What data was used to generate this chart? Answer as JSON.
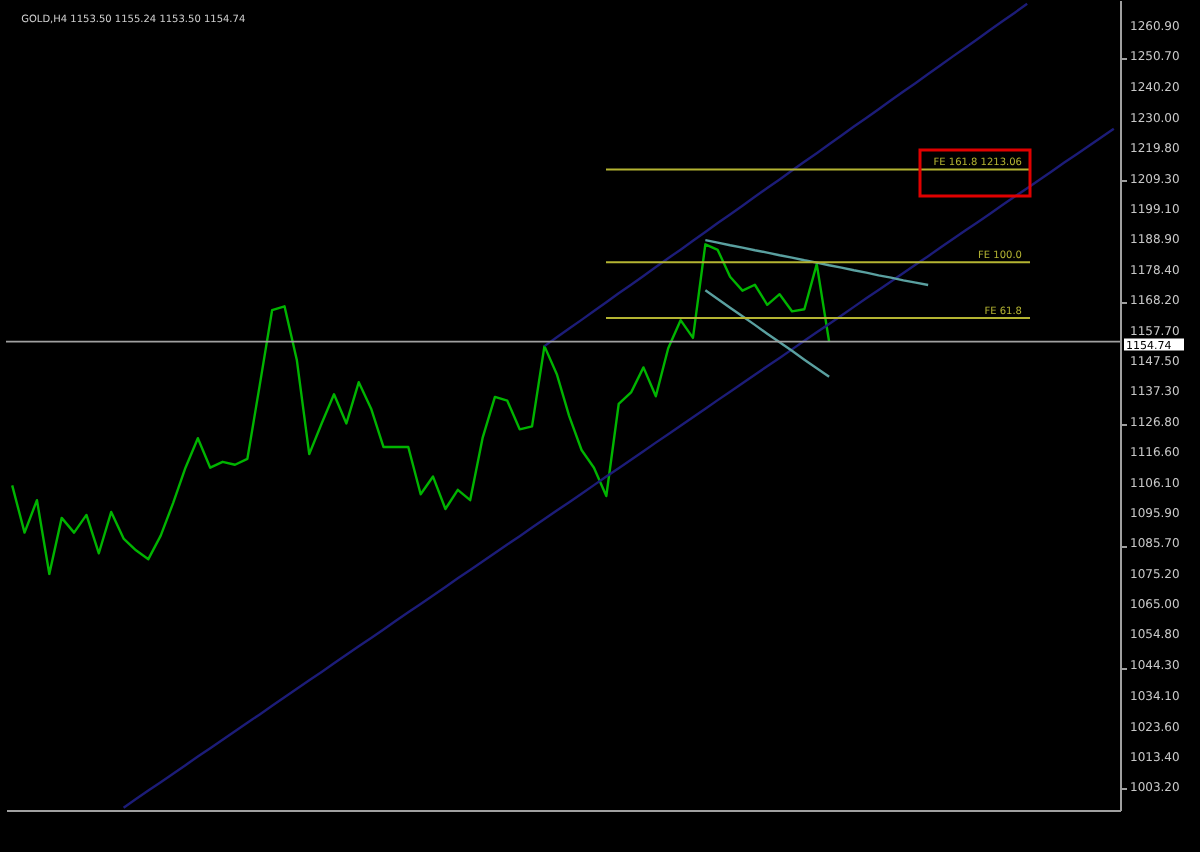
{
  "chart_data": {
    "type": "line",
    "title": "GOLD,H4 1153.50 1155.24 1153.50 1154.74",
    "ylim": [
      996,
      1270.5
    ],
    "categories": [
      null,
      null,
      null,
      null,
      null,
      null,
      null,
      null,
      null,
      null,
      null,
      null,
      null,
      null,
      null,
      null,
      null,
      null,
      null,
      null,
      null,
      null,
      null,
      null,
      null,
      null,
      null,
      null,
      null,
      null,
      null,
      null,
      null,
      null,
      null,
      null,
      null,
      null,
      null,
      null,
      null,
      null,
      null,
      null,
      null,
      null,
      null,
      null,
      null,
      null,
      null,
      null,
      null,
      null,
      null,
      null,
      null,
      null,
      null,
      null,
      null,
      null,
      null,
      null,
      null,
      null,
      null,
      null,
      null,
      null,
      null,
      null,
      null,
      null,
      null,
      null,
      null,
      null,
      null,
      null,
      null,
      null,
      null,
      null,
      null,
      null,
      null,
      null,
      null,
      null
    ],
    "yticks": [
      {
        "value": 1260.9,
        "label": "1260.90"
      },
      {
        "value": 1250.7,
        "label": "1250.70"
      },
      {
        "value": 1240.2,
        "label": "1240.20"
      },
      {
        "value": 1230.0,
        "label": "1230.00"
      },
      {
        "value": 1219.8,
        "label": "1219.80"
      },
      {
        "value": 1209.3,
        "label": "1209.30"
      },
      {
        "value": 1199.1,
        "label": "1199.10"
      },
      {
        "value": 1188.9,
        "label": "1188.90"
      },
      {
        "value": 1178.4,
        "label": "1178.40"
      },
      {
        "value": 1168.2,
        "label": "1168.20"
      },
      {
        "value": 1157.7,
        "label": "1157.70"
      },
      {
        "value": 1147.5,
        "label": "1147.50"
      },
      {
        "value": 1137.3,
        "label": "1137.30"
      },
      {
        "value": 1126.8,
        "label": "1126.80"
      },
      {
        "value": 1116.6,
        "label": "1116.60"
      },
      {
        "value": 1106.1,
        "label": "1106.10"
      },
      {
        "value": 1095.9,
        "label": "1095.90"
      },
      {
        "value": 1085.7,
        "label": "1085.70"
      },
      {
        "value": 1075.2,
        "label": "1075.20"
      },
      {
        "value": 1065.0,
        "label": "1065.00"
      },
      {
        "value": 1054.8,
        "label": "1054.80"
      },
      {
        "value": 1044.3,
        "label": "1044.30"
      },
      {
        "value": 1034.1,
        "label": "1034.10"
      },
      {
        "value": 1023.6,
        "label": "1023.60"
      },
      {
        "value": 1013.4,
        "label": "1013.40"
      },
      {
        "value": 1003.2,
        "label": "1003.20"
      }
    ],
    "tick_labels": "y",
    "grid": false,
    "marker": "none",
    "line_style": "solid",
    "series": [
      {
        "color": "#00b400",
        "values": [
          1106,
          1090,
          1101,
          1076,
          1095,
          1090,
          1096,
          1083,
          1097,
          1088,
          1084,
          1081,
          1089,
          1100,
          1112,
          1122,
          1112,
          1114,
          1113,
          1115,
          1140,
          1165.4,
          1166.7,
          1148.4,
          1116.6,
          1127,
          1136.9,
          1127,
          1141,
          1132,
          1119,
          1119,
          1119,
          1103,
          1109,
          1098,
          1104.5,
          1101,
          1122,
          1136,
          1134.7,
          1125,
          1126,
          1153.2,
          1143.7,
          1129.5,
          1118,
          1112,
          1102.4,
          1133.6,
          1137.5,
          1146,
          1136.2,
          1152.5,
          1162,
          1156,
          1187.7,
          1185.8,
          1176.7,
          1172,
          1174,
          1167.2,
          1170.8,
          1165,
          1165.7,
          1181.0,
          1154.7,
          null,
          null,
          null,
          null,
          null,
          null,
          null,
          null,
          null,
          null,
          null,
          null,
          null,
          null,
          null,
          null,
          null,
          null,
          null,
          null,
          null,
          null,
          null
        ]
      },
      {
        "color": "#1c1c78",
        "values": [
          null,
          null,
          null,
          null,
          null,
          null,
          null,
          null,
          null,
          996.8,
          999.7,
          1002.6,
          1005.4,
          1008.3,
          1011.2,
          1014.1,
          1016.9,
          1019.8,
          1022.7,
          1025.6,
          1028.4,
          1031.3,
          1034.2,
          1037.1,
          1040.0,
          1042.8,
          1045.7,
          1048.6,
          1051.5,
          1054.3,
          1057.2,
          1060.1,
          1063.0,
          1065.8,
          1068.7,
          1071.6,
          1074.5,
          1077.3,
          1080.2,
          1083.1,
          1086.0,
          1088.8,
          1091.7,
          1094.6,
          1097.5,
          1100.3,
          1103.2,
          1106.1,
          1109.0,
          1111.8,
          1114.7,
          1117.6,
          1120.5,
          1123.3,
          1126.2,
          1129.1,
          1132.0,
          1134.9,
          1137.7,
          1140.6,
          1143.5,
          1146.4,
          1149.2,
          1152.1,
          1155.0,
          1157.9,
          1160.7,
          1163.6,
          1166.5,
          1169.4,
          1172.2,
          1175.1,
          1178.0,
          1180.9,
          1183.7,
          1186.6,
          1189.5,
          1192.4,
          1195.2,
          1198.1,
          1201.0,
          1203.9,
          1206.7,
          1209.6,
          1212.5,
          1215.4,
          1218.2,
          1221.1,
          1224.0,
          1226.9
        ]
      },
      {
        "color": "#1c1c78",
        "values": [
          null,
          null,
          null,
          null,
          null,
          null,
          null,
          null,
          null,
          null,
          null,
          null,
          null,
          null,
          null,
          null,
          null,
          null,
          null,
          null,
          null,
          null,
          null,
          null,
          null,
          null,
          null,
          null,
          null,
          null,
          null,
          null,
          null,
          null,
          null,
          null,
          null,
          null,
          null,
          null,
          null,
          null,
          null,
          1153.2,
          1156.2,
          1159.2,
          1162.1,
          1165.1,
          1168.1,
          1171.1,
          1174.0,
          1177.0,
          1180.0,
          1183.0,
          1185.9,
          1188.9,
          1191.9,
          1194.9,
          1197.8,
          1200.8,
          1203.8,
          1206.8,
          1209.7,
          1212.7,
          1215.7,
          1218.6,
          1221.6,
          1224.6,
          1227.6,
          1230.5,
          1233.5,
          1236.5,
          1239.5,
          1242.4,
          1245.4,
          1248.4,
          1251.4,
          1254.3,
          1257.3,
          1260.3,
          1263.3,
          1266.2,
          1269.2,
          null,
          null,
          null,
          null,
          null,
          null,
          null
        ]
      },
      {
        "color": "#5aa0a0",
        "values": [
          null,
          null,
          null,
          null,
          null,
          null,
          null,
          null,
          null,
          null,
          null,
          null,
          null,
          null,
          null,
          null,
          null,
          null,
          null,
          null,
          null,
          null,
          null,
          null,
          null,
          null,
          null,
          null,
          null,
          null,
          null,
          null,
          null,
          null,
          null,
          null,
          null,
          null,
          null,
          null,
          null,
          null,
          null,
          null,
          null,
          null,
          null,
          null,
          null,
          null,
          null,
          null,
          null,
          null,
          null,
          null,
          1189.1,
          1188.3,
          1187.4,
          1186.6,
          1185.7,
          1184.9,
          1184.0,
          1183.2,
          1182.3,
          1181.5,
          1180.6,
          1179.8,
          1178.9,
          1178.1,
          1177.2,
          1176.4,
          1175.5,
          1174.7,
          1173.9,
          null,
          null,
          null,
          null,
          null,
          null,
          null,
          null,
          null,
          null,
          null,
          null,
          null,
          null,
          null
        ]
      },
      {
        "color": "#5aa0a0",
        "values": [
          null,
          null,
          null,
          null,
          null,
          null,
          null,
          null,
          null,
          null,
          null,
          null,
          null,
          null,
          null,
          null,
          null,
          null,
          null,
          null,
          null,
          null,
          null,
          null,
          null,
          null,
          null,
          null,
          null,
          null,
          null,
          null,
          null,
          null,
          null,
          null,
          null,
          null,
          null,
          null,
          null,
          null,
          null,
          null,
          null,
          null,
          null,
          null,
          null,
          null,
          null,
          null,
          null,
          null,
          null,
          null,
          1172.1,
          1169.2,
          1166.2,
          1163.3,
          1160.4,
          1157.4,
          1154.5,
          1151.6,
          1148.6,
          1145.7,
          1142.8,
          null,
          null,
          null,
          null,
          null,
          null,
          null,
          null,
          null,
          null,
          null,
          null,
          null,
          null,
          null,
          null,
          null,
          null,
          null,
          null,
          null,
          null,
          null
        ]
      }
    ],
    "ref_lines": [
      {
        "axis": "y",
        "value": 1154.74,
        "label": "1154.74",
        "color": "#a0a0a0"
      },
      {
        "axis": "y",
        "value": 1213.06,
        "label": "FE 161.8  1213.06",
        "color": "#b4b432"
      },
      {
        "axis": "y",
        "value": 1181.6,
        "label": "FE 100.0",
        "color": "#b4b432"
      },
      {
        "axis": "y",
        "value": 1162.7,
        "label": "FE 61.8",
        "color": "#b4b432"
      }
    ]
  }
}
